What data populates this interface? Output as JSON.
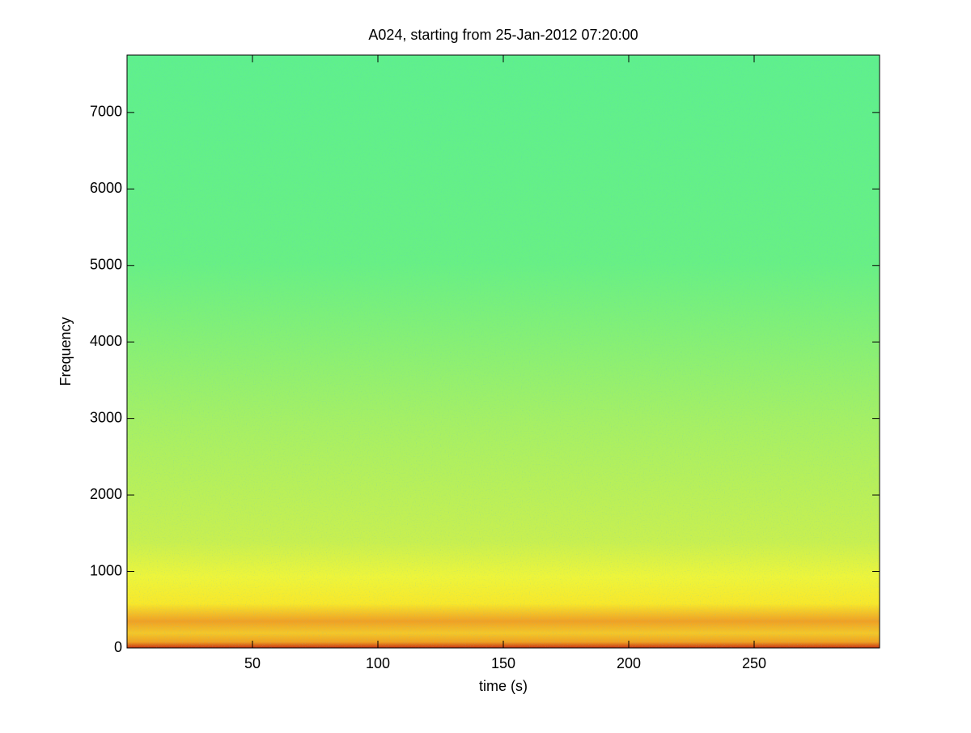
{
  "chart_data": {
    "type": "spectrogram",
    "title": "A024, starting from 25-Jan-2012 07:20:00",
    "xlabel": "time (s)",
    "ylabel": "Frequency",
    "xlim": [
      0,
      300
    ],
    "ylim": [
      0,
      7750
    ],
    "xticks": [
      50,
      100,
      150,
      200,
      250
    ],
    "yticks": [
      0,
      1000,
      2000,
      3000,
      4000,
      5000,
      6000,
      7000
    ]
  }
}
